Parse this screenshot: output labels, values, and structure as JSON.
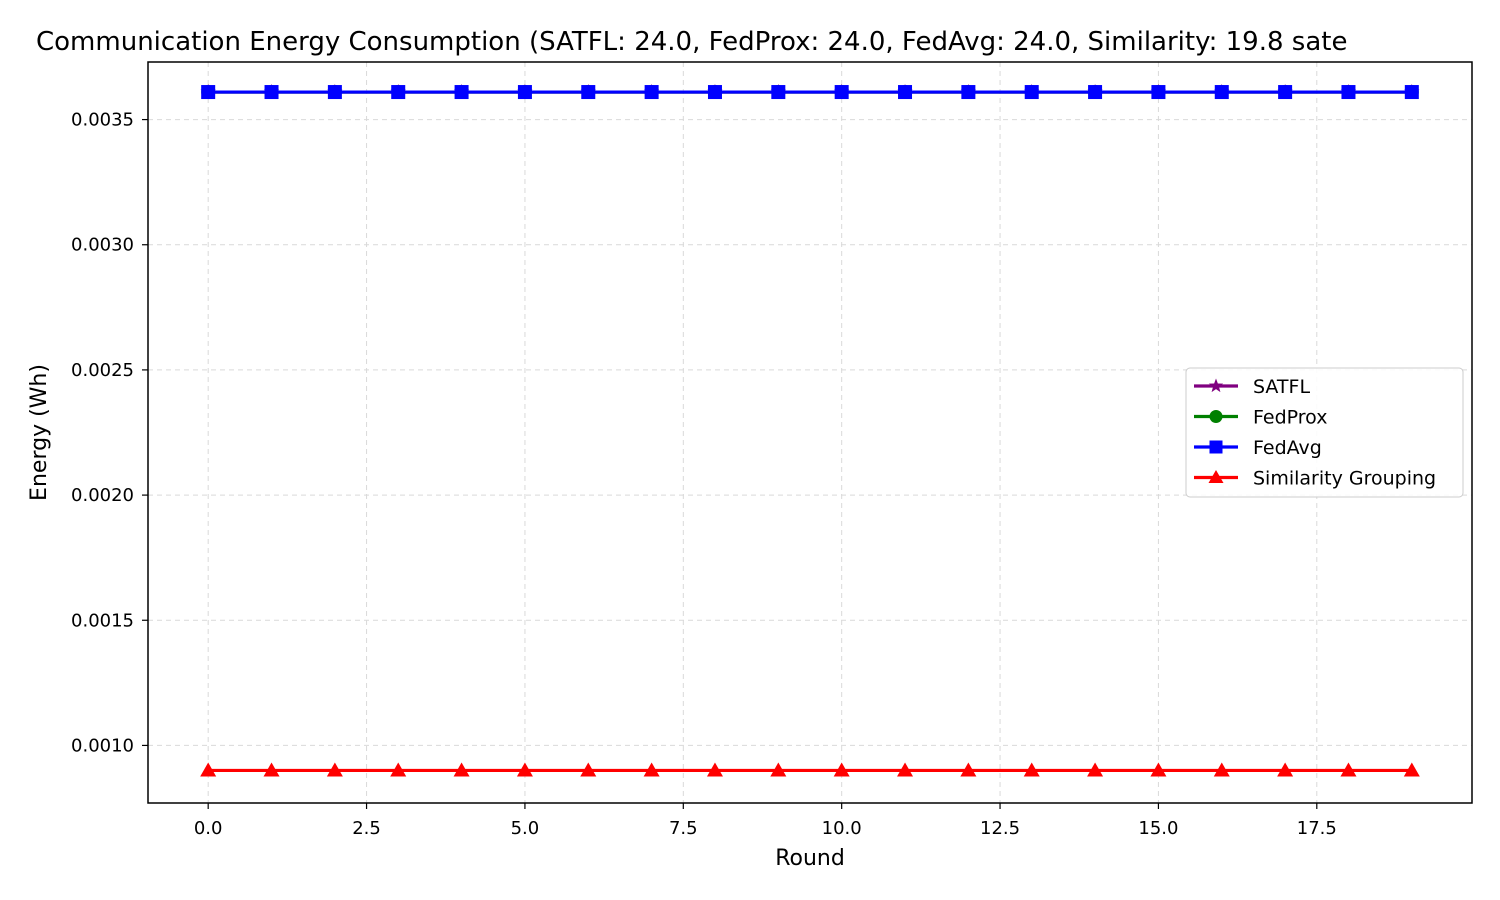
{
  "chart_data": {
    "type": "line",
    "title": "Communication Energy Consumption (SATFL: 24.0, FedProx: 24.0, FedAvg: 24.0, Similarity: 19.8 sate",
    "xlabel": "Round",
    "ylabel": "Energy (Wh)",
    "xlim": [
      -0.95,
      19.95
    ],
    "ylim": [
      0.00077,
      0.00373
    ],
    "x_ticks": [
      "0.0",
      "2.5",
      "5.0",
      "7.5",
      "10.0",
      "12.5",
      "15.0",
      "17.5"
    ],
    "x_tick_values": [
      0,
      2.5,
      5,
      7.5,
      10,
      12.5,
      15,
      17.5
    ],
    "y_ticks": [
      "0.0010",
      "0.0015",
      "0.0020",
      "0.0025",
      "0.0030",
      "0.0035"
    ],
    "y_tick_values": [
      0.001,
      0.0015,
      0.002,
      0.0025,
      0.003,
      0.0035
    ],
    "grid": true,
    "legend_position": "center-right",
    "x": [
      0,
      1,
      2,
      3,
      4,
      5,
      6,
      7,
      8,
      9,
      10,
      11,
      12,
      13,
      14,
      15,
      16,
      17,
      18,
      19
    ],
    "series": [
      {
        "name": "SATFL",
        "color": "#800080",
        "marker": "star",
        "values": [
          0.00361,
          0.00361,
          0.00361,
          0.00361,
          0.00361,
          0.00361,
          0.00361,
          0.00361,
          0.00361,
          0.00361,
          0.00361,
          0.00361,
          0.00361,
          0.00361,
          0.00361,
          0.00361,
          0.00361,
          0.00361,
          0.00361,
          0.00361
        ]
      },
      {
        "name": "FedProx",
        "color": "#008000",
        "marker": "circle",
        "values": [
          0.00361,
          0.00361,
          0.00361,
          0.00361,
          0.00361,
          0.00361,
          0.00361,
          0.00361,
          0.00361,
          0.00361,
          0.00361,
          0.00361,
          0.00361,
          0.00361,
          0.00361,
          0.00361,
          0.00361,
          0.00361,
          0.00361,
          0.00361
        ]
      },
      {
        "name": "FedAvg",
        "color": "#0000ff",
        "marker": "square",
        "values": [
          0.00361,
          0.00361,
          0.00361,
          0.00361,
          0.00361,
          0.00361,
          0.00361,
          0.00361,
          0.00361,
          0.00361,
          0.00361,
          0.00361,
          0.00361,
          0.00361,
          0.00361,
          0.00361,
          0.00361,
          0.00361,
          0.00361,
          0.00361
        ]
      },
      {
        "name": "Similarity Grouping",
        "color": "#ff0000",
        "marker": "triangle",
        "values": [
          0.0009,
          0.0009,
          0.0009,
          0.0009,
          0.0009,
          0.0009,
          0.0009,
          0.0009,
          0.0009,
          0.0009,
          0.0009,
          0.0009,
          0.0009,
          0.0009,
          0.0009,
          0.0009,
          0.0009,
          0.0009,
          0.0009,
          0.0009
        ]
      }
    ]
  }
}
